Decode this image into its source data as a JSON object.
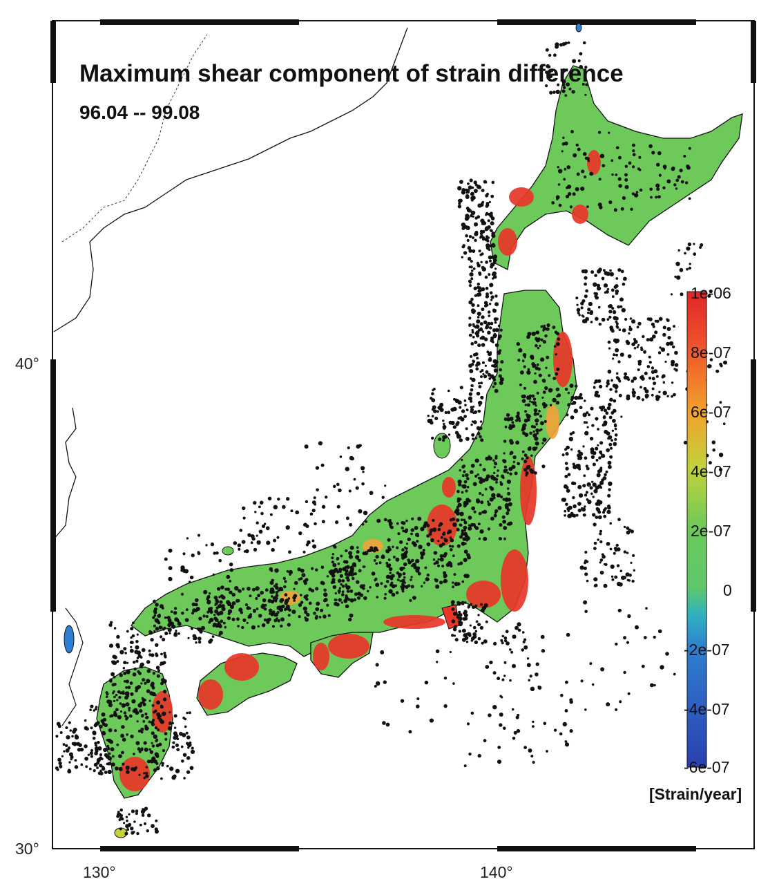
{
  "map": {
    "title": "Maximum shear component of strain difference",
    "subtitle": "96.04 -- 99.08",
    "lat_labels": [
      "40°",
      "30°"
    ],
    "lon_labels": [
      "130°",
      "140°"
    ],
    "lon_range": [
      129,
      147
    ],
    "lat_range": [
      30,
      46
    ],
    "colors": {
      "land_base": "#6cc95a",
      "high_strain": "#e8372a",
      "mid_strain": "#f0a43a",
      "seismicity_dot": "#111111",
      "coastline": "#111111"
    }
  },
  "colorbar": {
    "ticks": [
      "1e-06",
      "8e-07",
      "6e-07",
      "4e-07",
      "2e-07",
      "0",
      "-2e-07",
      "-4e-07",
      "-6e-07"
    ],
    "unit_label": "[Strain/year]",
    "range": [
      -6e-07,
      1e-06
    ],
    "stops": [
      {
        "value": 1e-06,
        "color": "#e0262a"
      },
      {
        "value": 8e-07,
        "color": "#f0562a"
      },
      {
        "value": 6e-07,
        "color": "#f3a02c"
      },
      {
        "value": 4e-07,
        "color": "#c3d23a"
      },
      {
        "value": 2e-07,
        "color": "#6cc95a"
      },
      {
        "value": 0,
        "color": "#5fc86a"
      },
      {
        "value": -1e-07,
        "color": "#2fb2c0"
      },
      {
        "value": -2e-07,
        "color": "#2f7fd0"
      },
      {
        "value": -6e-07,
        "color": "#2a3fb0"
      }
    ]
  }
}
